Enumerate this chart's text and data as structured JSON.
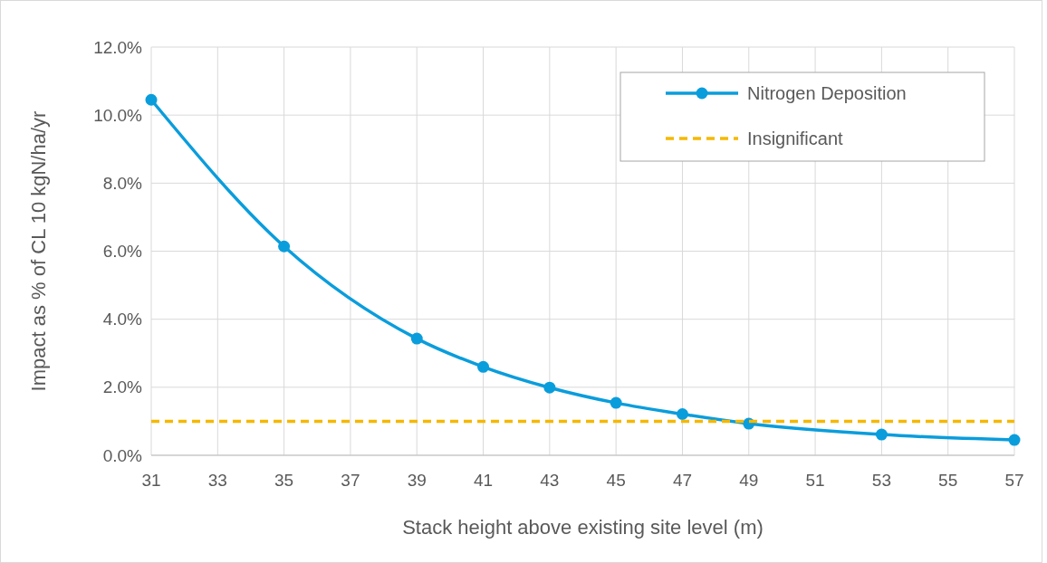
{
  "chart_data": {
    "type": "line",
    "xlabel": "Stack height above existing site level  (m)",
    "ylabel": "Impact as % of CL 10 kgN/ha/yr",
    "xlim": [
      31,
      57
    ],
    "xticks": [
      31,
      33,
      35,
      37,
      39,
      41,
      43,
      45,
      47,
      49,
      51,
      53,
      55,
      57
    ],
    "ylim": [
      0,
      12
    ],
    "yticks": [
      {
        "value": 0,
        "label": "0.0%"
      },
      {
        "value": 2,
        "label": "2.0%"
      },
      {
        "value": 4,
        "label": "4.0%"
      },
      {
        "value": 6,
        "label": "6.0%"
      },
      {
        "value": 8,
        "label": "8.0%"
      },
      {
        "value": 10,
        "label": "10.0%"
      },
      {
        "value": 12,
        "label": "12.0%"
      }
    ],
    "grid": true,
    "legend": "top right",
    "series": [
      {
        "name": "Nitrogen Deposition",
        "color": "#0a9ddc",
        "marker": "circle",
        "line_style": "solid",
        "x": [
          31,
          35,
          39,
          41,
          43,
          45,
          47,
          49,
          53,
          57
        ],
        "values": [
          10.45,
          6.14,
          3.43,
          2.6,
          1.99,
          1.54,
          1.21,
          0.93,
          0.61,
          0.45
        ]
      },
      {
        "name": "Insignificant",
        "color": "#f5b800",
        "marker": "none",
        "line_style": "dashed",
        "x": [
          31,
          57
        ],
        "values": [
          1,
          1
        ]
      }
    ]
  }
}
